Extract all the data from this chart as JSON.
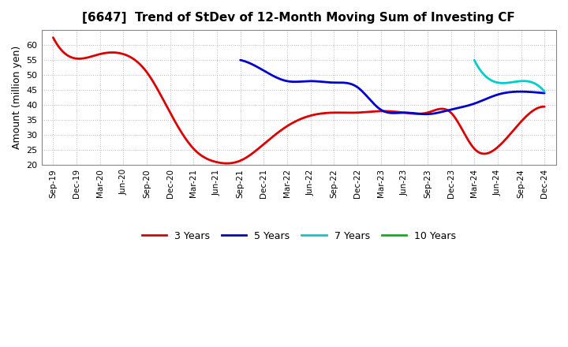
{
  "title": "[6647]  Trend of StDev of 12-Month Moving Sum of Investing CF",
  "ylabel": "Amount (million yen)",
  "background_color": "#ffffff",
  "plot_bg_color": "#ffffff",
  "grid_color": "#aaaaaa",
  "ylim": [
    20,
    65
  ],
  "yticks": [
    20,
    25,
    30,
    35,
    40,
    45,
    50,
    55,
    60
  ],
  "x_labels": [
    "Sep-19",
    "Dec-19",
    "Mar-20",
    "Jun-20",
    "Sep-20",
    "Dec-20",
    "Mar-21",
    "Jun-21",
    "Sep-21",
    "Dec-21",
    "Mar-22",
    "Jun-22",
    "Sep-22",
    "Dec-22",
    "Mar-23",
    "Jun-23",
    "Sep-23",
    "Dec-23",
    "Mar-24",
    "Jun-24",
    "Sep-24",
    "Dec-24"
  ],
  "series": {
    "3 Years": {
      "color": "#dd0000",
      "linewidth": 2.0,
      "values": [
        62.5,
        55.5,
        57.0,
        57.0,
        51.0,
        37.5,
        25.5,
        21.0,
        21.5,
        27.0,
        33.0,
        36.5,
        37.5,
        37.5,
        38.0,
        37.5,
        37.5,
        37.5,
        25.5,
        26.0,
        34.5,
        39.5
      ]
    },
    "5 Years": {
      "color": "#0000cc",
      "linewidth": 2.0,
      "values": [
        null,
        null,
        null,
        null,
        null,
        null,
        null,
        null,
        55.0,
        51.5,
        48.0,
        48.0,
        47.5,
        46.0,
        38.5,
        37.5,
        37.0,
        38.5,
        40.5,
        43.5,
        44.5,
        44.0
      ]
    },
    "7 Years": {
      "color": "#00cccc",
      "linewidth": 2.0,
      "values": [
        null,
        null,
        null,
        null,
        null,
        null,
        null,
        null,
        null,
        null,
        null,
        null,
        null,
        null,
        null,
        null,
        null,
        null,
        55.0,
        47.5,
        48.0,
        44.5
      ]
    },
    "10 Years": {
      "color": "#00bb00",
      "linewidth": 2.0,
      "values": [
        null,
        null,
        null,
        null,
        null,
        null,
        null,
        null,
        null,
        null,
        null,
        null,
        null,
        null,
        null,
        null,
        null,
        null,
        null,
        null,
        null,
        null
      ]
    }
  },
  "legend_order": [
    "3 Years",
    "5 Years",
    "7 Years",
    "10 Years"
  ]
}
